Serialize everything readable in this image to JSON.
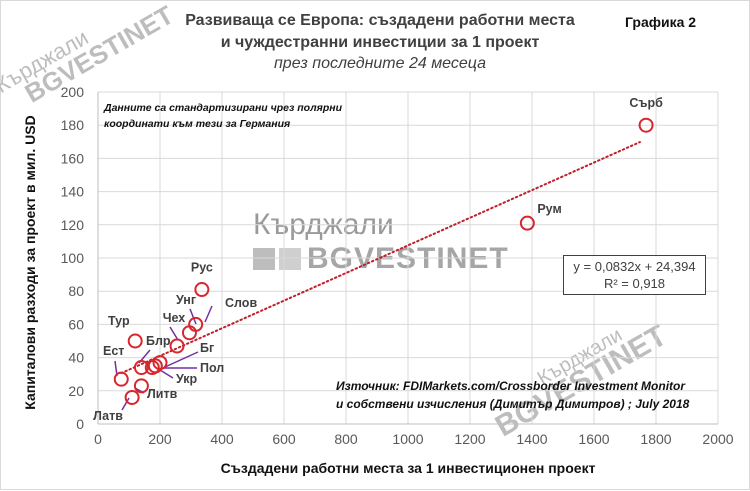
{
  "header": {
    "title_line1": "Развиваща се Европа: създадени работни места",
    "title_line2": "и чуждестранни инвестиции за 1 проект",
    "subtitle": "през последните 24 месеца",
    "chart_number": "Графика 2"
  },
  "note": {
    "line1": "Данните са стандартизирани чрез полярни",
    "line2": "координати към тези за Германия"
  },
  "source": {
    "line1": "Източник: FDIMarkets.com/Crossborder Investment Monitor",
    "line2": "и собствени изчисления (Димитър Димитров) ; July 2018"
  },
  "trendline": {
    "equation": "y = 0,0832x + 24,394",
    "r_squared": "R² = 0,918"
  },
  "watermark": {
    "city": "Кърджали",
    "brand": "BGVESTINET"
  },
  "colors": {
    "marker": "#d9262e",
    "trend": "#c0202a",
    "leader": "#7030a0",
    "grid": "#d9d9d9",
    "text": "#404040"
  },
  "chart_data": {
    "type": "scatter",
    "title": "Развиваща се Европа: създадени работни места и чуждестранни инвестиции за 1 проект",
    "subtitle": "през последните 24 месеца",
    "xlabel": "Създадени работни места за 1 инвестиционен проект",
    "ylabel": "Капиталови разходи за проект в мил. USD",
    "xlim": [
      0,
      2000
    ],
    "ylim": [
      0,
      200
    ],
    "xticks": [
      0,
      200,
      400,
      600,
      800,
      1000,
      1200,
      1400,
      1600,
      1800,
      2000
    ],
    "yticks": [
      0,
      20,
      40,
      60,
      80,
      100,
      120,
      140,
      160,
      180,
      200
    ],
    "grid": true,
    "legend": null,
    "points": [
      {
        "label": "Сърб",
        "x": 1768,
        "y": 180
      },
      {
        "label": "Рум",
        "x": 1385,
        "y": 121
      },
      {
        "label": "Рус",
        "x": 335,
        "y": 81
      },
      {
        "label": "Слов",
        "x": 315,
        "y": 60
      },
      {
        "label": "Унг",
        "x": 295,
        "y": 55
      },
      {
        "label": "Чех",
        "x": 255,
        "y": 47
      },
      {
        "label": "Тур",
        "x": 120,
        "y": 50
      },
      {
        "label": "Бг",
        "x": 200,
        "y": 37
      },
      {
        "label": "Пол",
        "x": 185,
        "y": 35
      },
      {
        "label": "Укр",
        "x": 175,
        "y": 34
      },
      {
        "label": "Блр",
        "x": 140,
        "y": 34
      },
      {
        "label": "Ест",
        "x": 75,
        "y": 27
      },
      {
        "label": "Литв",
        "x": 140,
        "y": 23
      },
      {
        "label": "Латв",
        "x": 110,
        "y": 16
      }
    ],
    "trendline": {
      "type": "linear",
      "slope": 0.0832,
      "intercept": 24.394,
      "r2": 0.918,
      "x_range": [
        75,
        1768
      ]
    },
    "annotations": [
      "Данните са стандартизирани чрез полярни координати към тези за Германия",
      "Източник: FDIMarkets.com/Crossborder Investment Monitor и собствени изчисления (Димитър Димитров) ; July 2018",
      "y = 0,0832x + 24,394",
      "R² = 0,918"
    ]
  }
}
